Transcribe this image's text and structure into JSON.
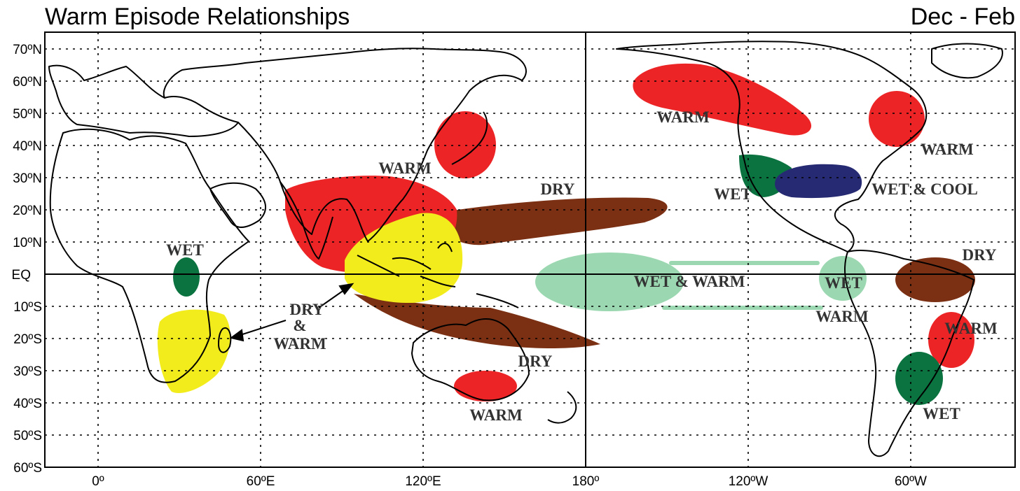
{
  "title": "Warm Episode Relationships",
  "season": "Dec - Feb",
  "colors": {
    "warm": "#ec2426",
    "dry": "#7b3014",
    "wet": "#0b7340",
    "wet_light": "#9bd8b1",
    "wet_cool": "#262a72",
    "dry_warm": "#f2ec1c"
  },
  "axes": {
    "lat_labels": [
      "70ºN",
      "60ºN",
      "50ºN",
      "40ºN",
      "30ºN",
      "20ºN",
      "10ºN",
      "EQ",
      "10ºS",
      "20ºS",
      "30ºS",
      "40ºS",
      "50ºS",
      "60ºS"
    ],
    "lon_labels": [
      "0º",
      "60ºE",
      "120ºE",
      "180º",
      "120ºW",
      "60ºW"
    ]
  },
  "regions": [
    {
      "label": "WARM",
      "type": "warm"
    },
    {
      "label": "WARM",
      "type": "warm"
    },
    {
      "label": "WARM",
      "type": "warm"
    },
    {
      "label": "WARM",
      "type": "warm"
    },
    {
      "label": "WARM",
      "type": "warm"
    },
    {
      "label": "DRY",
      "type": "dry"
    },
    {
      "label": "DRY",
      "type": "dry"
    },
    {
      "label": "DRY",
      "type": "dry"
    },
    {
      "label": "WET",
      "type": "wet"
    },
    {
      "label": "WET",
      "type": "wet"
    },
    {
      "label": "WET",
      "type": "wet"
    },
    {
      "label": "WET & COOL",
      "type": "wet_cool"
    },
    {
      "label": "WET & WARM",
      "type": "wet_light"
    },
    {
      "label": "WET",
      "type": "wet_light"
    },
    {
      "label": "WARM",
      "type": "wet_light"
    },
    {
      "label": "DRY",
      "type": "dry_warm"
    },
    {
      "label": "&",
      "type": "dry_warm"
    },
    {
      "label": "WARM",
      "type": "dry_warm"
    }
  ]
}
